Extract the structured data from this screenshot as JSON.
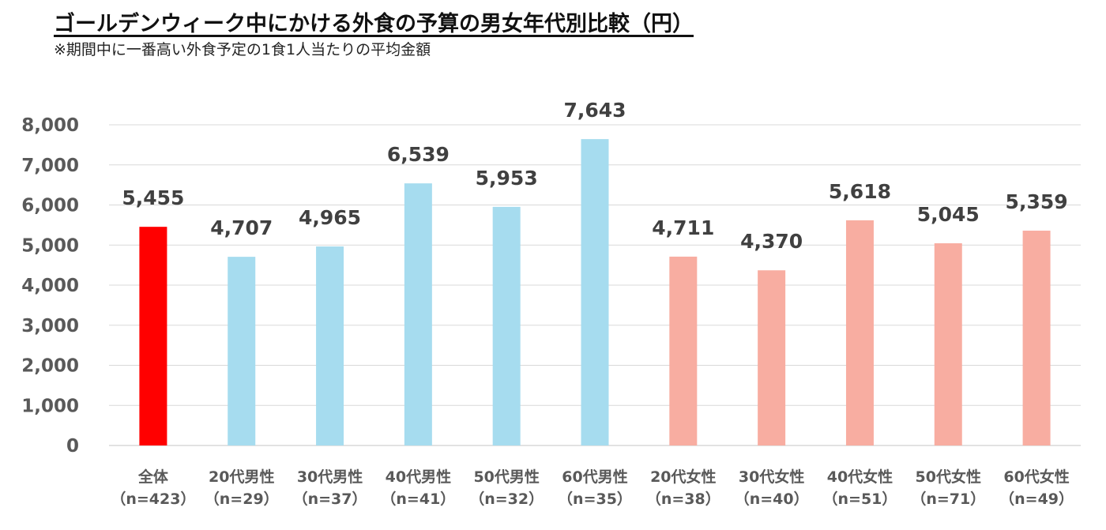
{
  "title": "ゴールデンウィーク中にかける外食の予算の男女年代別比較（円）",
  "subtitle": "※期間中に一番高い外食予定の1食1人当たりの平均金額",
  "chart_data": {
    "type": "bar",
    "categories": [
      {
        "name": "全体",
        "n": "（n=423）"
      },
      {
        "name": "20代男性",
        "n": "（n=29）"
      },
      {
        "name": "30代男性",
        "n": "（n=37）"
      },
      {
        "name": "40代男性",
        "n": "（n=41）"
      },
      {
        "name": "50代男性",
        "n": "（n=32）"
      },
      {
        "name": "60代男性",
        "n": "（n=35）"
      },
      {
        "name": "20代女性",
        "n": "（n=38）"
      },
      {
        "name": "30代女性",
        "n": "（n=40）"
      },
      {
        "name": "40代女性",
        "n": "（n=51）"
      },
      {
        "name": "50代女性",
        "n": "（n=71）"
      },
      {
        "name": "60代女性",
        "n": "（n=49）"
      }
    ],
    "values": [
      5455,
      4707,
      4965,
      6539,
      5953,
      7643,
      4711,
      4370,
      5618,
      5045,
      5359
    ],
    "value_labels": [
      "5,455",
      "4,707",
      "4,965",
      "6,539",
      "5,953",
      "7,643",
      "4,711",
      "4,370",
      "5,618",
      "5,045",
      "5,359"
    ],
    "bar_colors": [
      "#ff0000",
      "#a6dcef",
      "#a6dcef",
      "#a6dcef",
      "#a6dcef",
      "#a6dcef",
      "#f8ada1",
      "#f8ada1",
      "#f8ada1",
      "#f8ada1",
      "#f8ada1"
    ],
    "ylim": [
      0,
      8000
    ],
    "yticks": [
      "0",
      "1,000",
      "2,000",
      "3,000",
      "4,000",
      "5,000",
      "6,000",
      "7,000",
      "8,000"
    ],
    "grid": true,
    "gridline_color": "#d9d9d9"
  }
}
